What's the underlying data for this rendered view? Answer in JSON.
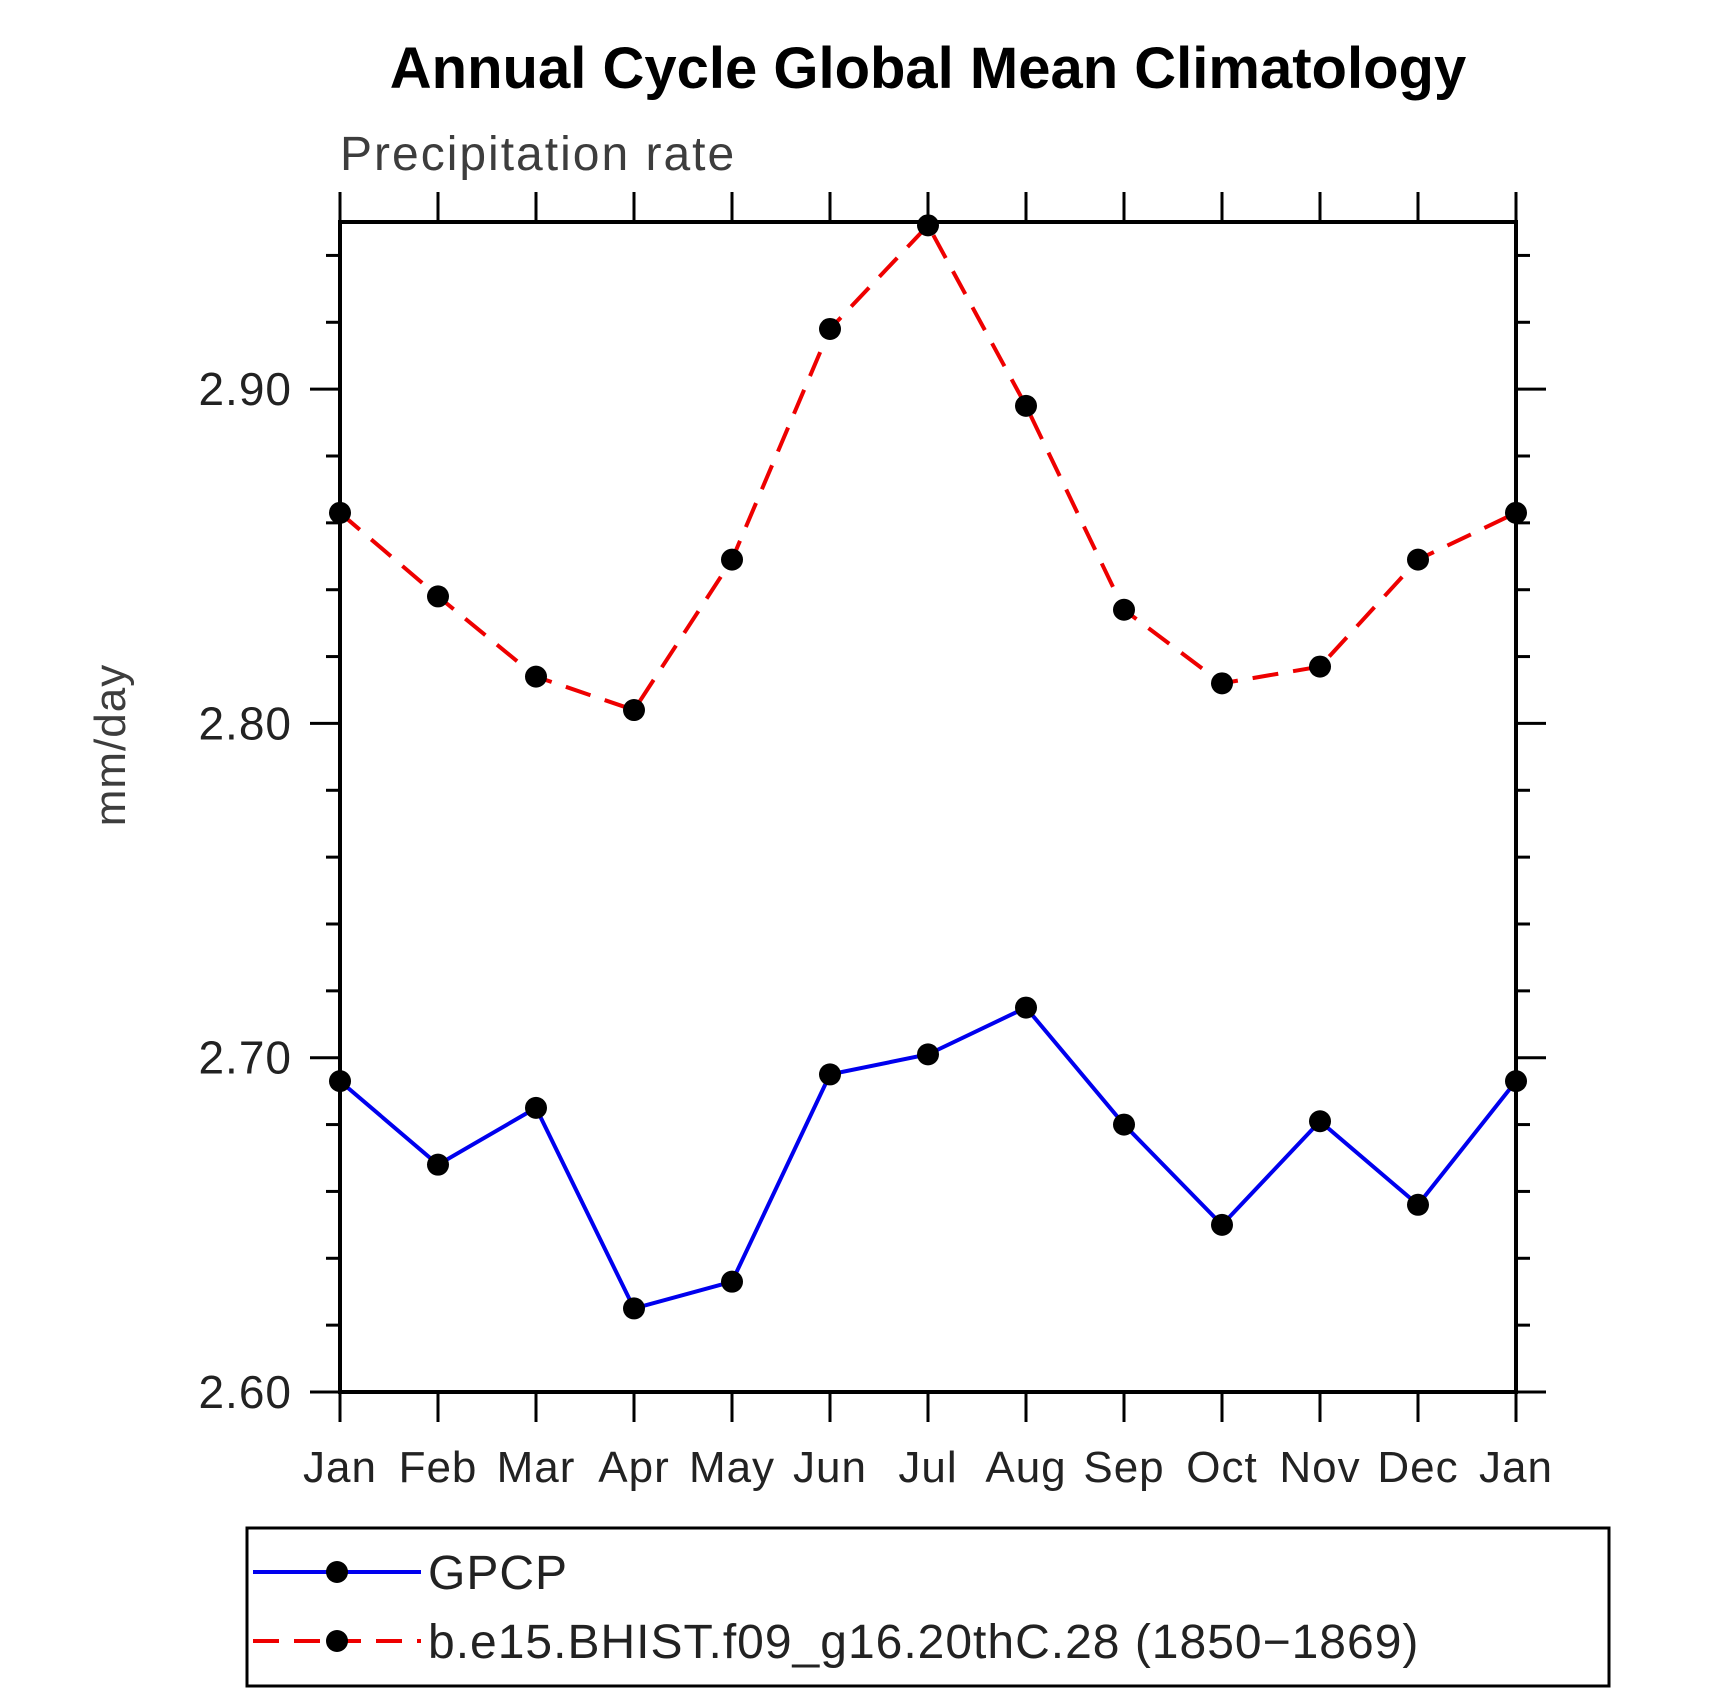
{
  "title": "Annual Cycle Global Mean Climatology",
  "subtitle": "Precipitation rate",
  "chart_data": {
    "type": "line",
    "x_categories": [
      "Jan",
      "Feb",
      "Mar",
      "Apr",
      "May",
      "Jun",
      "Jul",
      "Aug",
      "Sep",
      "Oct",
      "Nov",
      "Dec",
      "Jan"
    ],
    "series": [
      {
        "name": "GPCP",
        "color": "#0000ee",
        "dasharray": "none",
        "marker": "filled-black-dot",
        "values": [
          2.693,
          2.668,
          2.685,
          2.625,
          2.633,
          2.695,
          2.701,
          2.715,
          2.68,
          2.65,
          2.681,
          2.656,
          2.693
        ]
      },
      {
        "name": "b.e15.BHIST.f09_g16.20thC.28 (1850−1869)",
        "color": "#ee0000",
        "dasharray": "26 15",
        "marker": "filled-black-dot",
        "values": [
          2.863,
          2.838,
          2.814,
          2.804,
          2.849,
          2.918,
          2.949,
          2.895,
          2.834,
          2.812,
          2.817,
          2.849,
          2.863
        ]
      }
    ],
    "title": "Annual Cycle Global Mean Climatology",
    "subtitle": "Precipitation rate",
    "xlabel": "",
    "ylabel": "mm/day",
    "ylim": [
      2.6,
      2.95
    ],
    "y_major_ticks": [
      {
        "value": 2.6,
        "label": "2.60"
      },
      {
        "value": 2.7,
        "label": "2.70"
      },
      {
        "value": 2.8,
        "label": "2.80"
      },
      {
        "value": 2.9,
        "label": "2.90"
      }
    ],
    "y_minor_interval": 0.02,
    "marker_color": "#000000",
    "grid": false,
    "legend_position": "below-plot"
  }
}
